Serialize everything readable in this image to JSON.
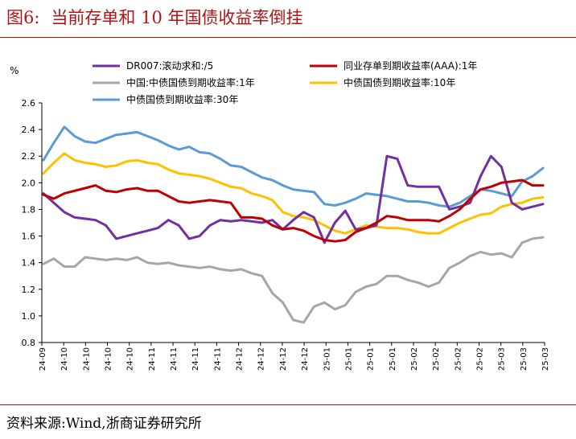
{
  "header": {
    "figure_label": "图6:",
    "title": "当前存单和 10 年国债收益率倒挂"
  },
  "footer": {
    "source": "资料来源:Wind,浙商证券研究所"
  },
  "chart_data": {
    "type": "line",
    "yunit": "%",
    "ylim": [
      0.8,
      2.6
    ],
    "yticks": [
      "0.8",
      "1.0",
      "1.2",
      "1.4",
      "1.6",
      "1.8",
      "2.0",
      "2.2",
      "2.4",
      "2.6"
    ],
    "xticks": [
      "24-09",
      "24-10",
      "24-10",
      "24-10",
      "24-10",
      "24-11",
      "24-11",
      "24-11",
      "24-11",
      "24-12",
      "24-12",
      "24-12",
      "24-12",
      "25-01",
      "25-01",
      "25-01",
      "25-01",
      "25-02",
      "25-02",
      "25-02",
      "25-02",
      "25-03",
      "25-03",
      "25-03"
    ],
    "legend_position": "top",
    "grid": false,
    "series": [
      {
        "name": "DR007:滚动求和:/5",
        "color": "#7030A0",
        "values": [
          1.92,
          1.85,
          1.78,
          1.74,
          1.73,
          1.72,
          1.68,
          1.58,
          1.6,
          1.62,
          1.64,
          1.66,
          1.72,
          1.68,
          1.58,
          1.6,
          1.68,
          1.72,
          1.71,
          1.72,
          1.71,
          1.7,
          1.72,
          1.65,
          1.72,
          1.78,
          1.74,
          1.55,
          1.7,
          1.79,
          1.65,
          1.66,
          1.68,
          2.2,
          2.18,
          1.98,
          1.97,
          1.97,
          1.97,
          1.8,
          1.82,
          1.85,
          2.05,
          2.2,
          2.12,
          1.85,
          1.8,
          1.82,
          1.84
        ]
      },
      {
        "name": "同业存单到期收益率(AAA):1年",
        "color": "#C00000",
        "values": [
          1.91,
          1.88,
          1.92,
          1.94,
          1.96,
          1.98,
          1.94,
          1.93,
          1.95,
          1.96,
          1.94,
          1.94,
          1.9,
          1.86,
          1.85,
          1.86,
          1.87,
          1.86,
          1.85,
          1.74,
          1.74,
          1.73,
          1.68,
          1.65,
          1.66,
          1.64,
          1.6,
          1.57,
          1.56,
          1.57,
          1.63,
          1.66,
          1.7,
          1.75,
          1.74,
          1.72,
          1.72,
          1.72,
          1.71,
          1.75,
          1.8,
          1.88,
          1.95,
          1.97,
          2.0,
          2.01,
          2.02,
          1.98,
          1.98
        ]
      },
      {
        "name": "中国:中债国债到期收益率:1年",
        "color": "#A6A6A6",
        "values": [
          1.39,
          1.43,
          1.37,
          1.37,
          1.44,
          1.43,
          1.42,
          1.43,
          1.42,
          1.44,
          1.4,
          1.39,
          1.4,
          1.38,
          1.37,
          1.36,
          1.37,
          1.35,
          1.34,
          1.35,
          1.32,
          1.3,
          1.17,
          1.1,
          0.97,
          0.95,
          1.07,
          1.1,
          1.05,
          1.08,
          1.18,
          1.22,
          1.24,
          1.3,
          1.3,
          1.27,
          1.25,
          1.22,
          1.25,
          1.36,
          1.4,
          1.45,
          1.48,
          1.46,
          1.47,
          1.44,
          1.55,
          1.58,
          1.59
        ]
      },
      {
        "name": "中债国债到期收益率:10年",
        "color": "#FFC000",
        "values": [
          2.07,
          2.15,
          2.22,
          2.17,
          2.15,
          2.14,
          2.12,
          2.13,
          2.16,
          2.17,
          2.15,
          2.14,
          2.1,
          2.07,
          2.06,
          2.05,
          2.03,
          2.0,
          1.97,
          1.96,
          1.92,
          1.9,
          1.87,
          1.78,
          1.75,
          1.74,
          1.72,
          1.68,
          1.64,
          1.62,
          1.65,
          1.68,
          1.67,
          1.66,
          1.66,
          1.65,
          1.63,
          1.62,
          1.62,
          1.66,
          1.7,
          1.73,
          1.76,
          1.77,
          1.82,
          1.84,
          1.85,
          1.88,
          1.89
        ]
      },
      {
        "name": "中债国债到期收益率:30年",
        "color": "#5B9BD5",
        "values": [
          2.17,
          2.3,
          2.42,
          2.35,
          2.31,
          2.3,
          2.33,
          2.36,
          2.37,
          2.38,
          2.35,
          2.32,
          2.28,
          2.25,
          2.27,
          2.23,
          2.22,
          2.18,
          2.13,
          2.12,
          2.08,
          2.04,
          2.02,
          1.98,
          1.95,
          1.94,
          1.93,
          1.84,
          1.83,
          1.85,
          1.88,
          1.92,
          1.91,
          1.9,
          1.88,
          1.86,
          1.86,
          1.85,
          1.83,
          1.82,
          1.85,
          1.9,
          1.95,
          1.94,
          1.92,
          1.9,
          2.01,
          2.05,
          2.11
        ]
      }
    ]
  }
}
